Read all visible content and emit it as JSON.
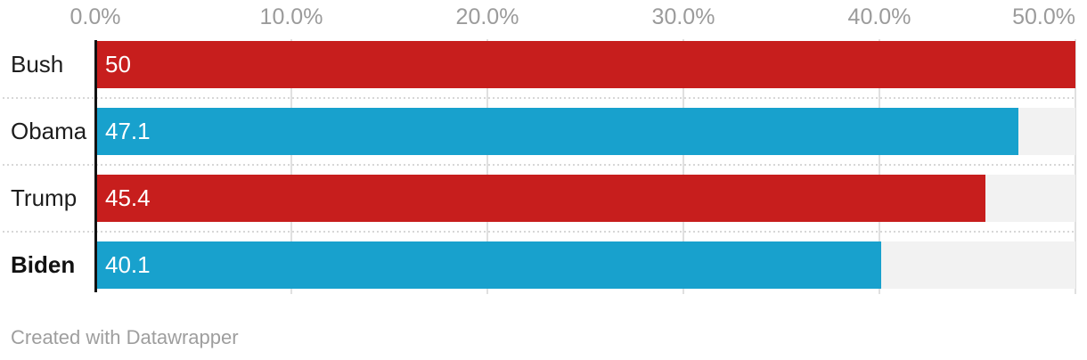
{
  "chart_data": {
    "type": "bar",
    "orientation": "horizontal",
    "title": "",
    "categories": [
      "Bush",
      "Obama",
      "Trump",
      "Biden"
    ],
    "values": [
      50,
      47.1,
      45.4,
      40.1
    ],
    "value_labels": [
      "50",
      "47.1",
      "45.4",
      "40.1"
    ],
    "bar_colors": [
      "#c71e1d",
      "#18a1cd",
      "#c71e1d",
      "#18a1cd"
    ],
    "bold_categories": [
      "Biden"
    ],
    "x_axis": {
      "position": "top",
      "min": 0,
      "max": 50,
      "tick_values": [
        0,
        10,
        20,
        30,
        40,
        50
      ],
      "tick_labels": [
        "0.0%",
        "10.0%",
        "20.0%",
        "30.0%",
        "40.0%",
        "50.0%"
      ],
      "unit": "%"
    },
    "grid": true,
    "legend": null,
    "colors": {
      "red_bar": "#c71e1d",
      "blue_bar": "#18a1cd",
      "bar_track": "#f2f2f2",
      "gridline": "#e0e0e0",
      "axis_line": "#121212",
      "tick_label": "#9b9b9b",
      "category_label": "#1d1d1d",
      "value_label": "#ffffff",
      "separator": "#d7d7d7"
    }
  },
  "footer": {
    "credit": "Created with Datawrapper"
  }
}
